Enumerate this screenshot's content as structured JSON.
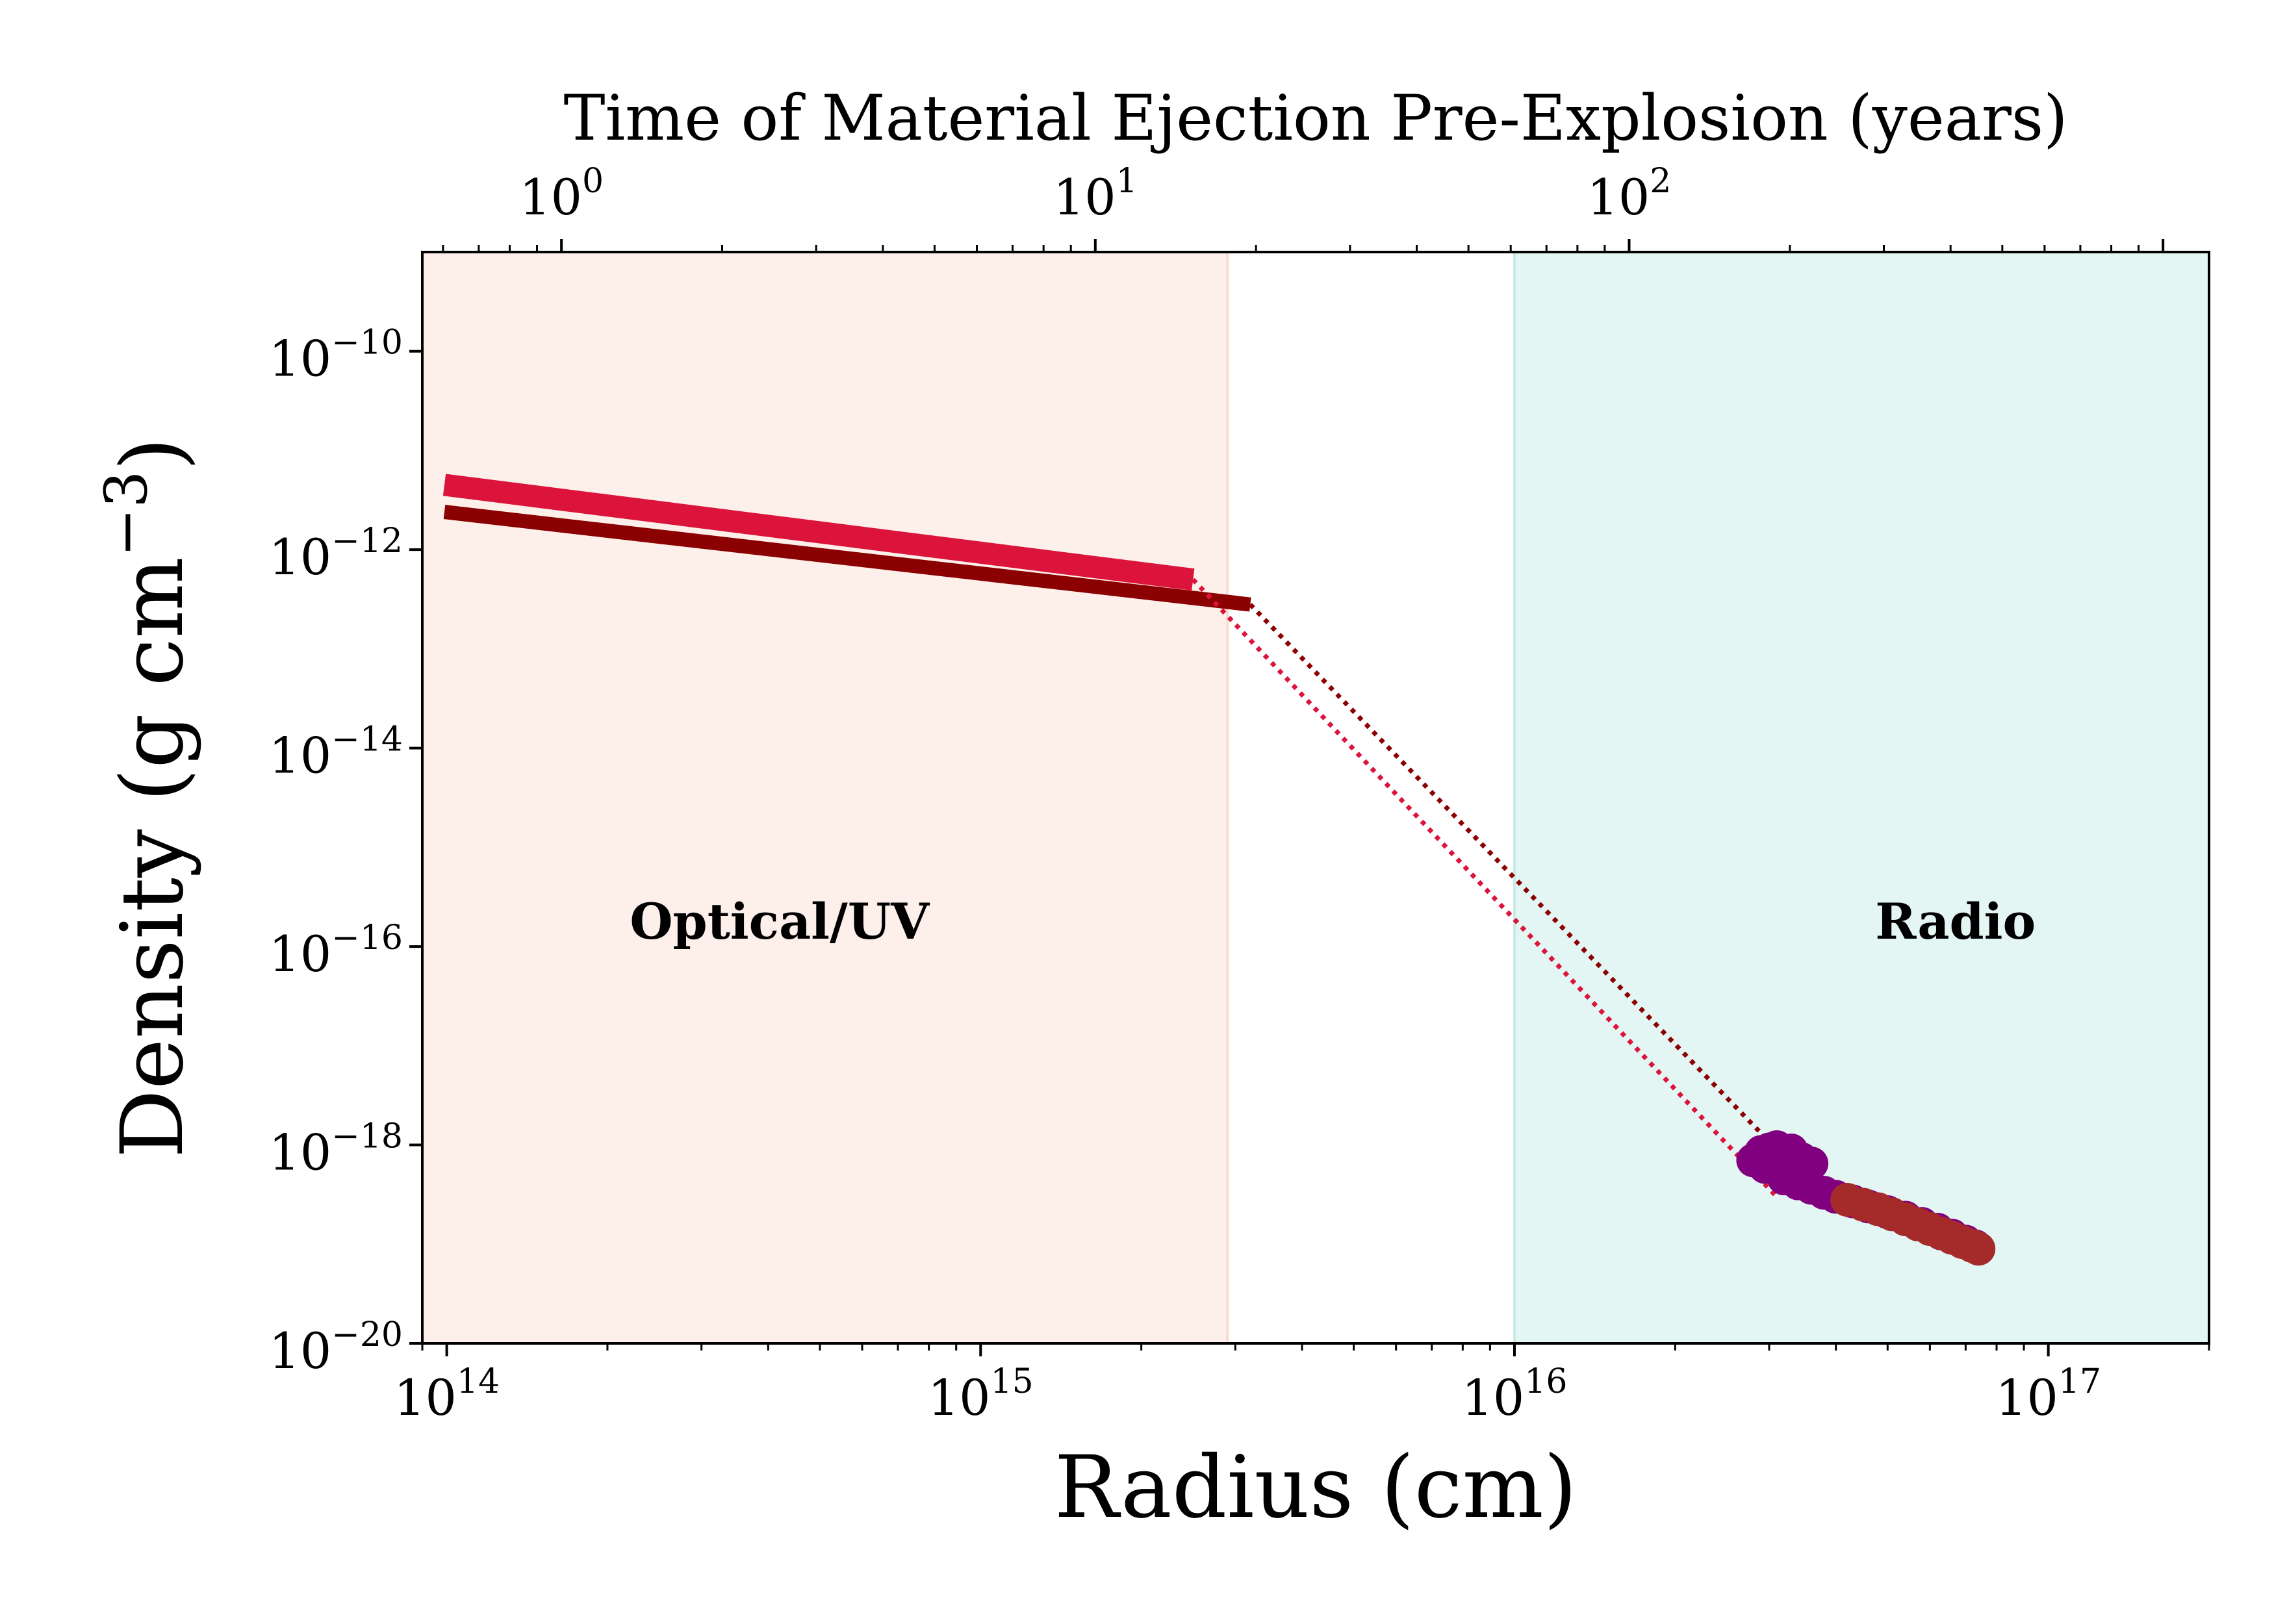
{
  "chart_data": {
    "type": "scatter",
    "xlabel": "Radius (cm)",
    "ylabel": "Density (g cm⁻³)",
    "ylabel_text": "Density (g cm",
    "ylabel_exp": "−3",
    "ylabel_close": ")",
    "top_xlabel": "Time of Material Ejection Pre-Explosion (years)",
    "xscale": "log",
    "yscale": "log",
    "xlim": [
      90000000000000.0,
      2e+17
    ],
    "ylim": [
      1e-20,
      1e-09
    ],
    "x_ticks": [
      {
        "value": 100000000000000.0,
        "base": "10",
        "exp": "14"
      },
      {
        "value": 1000000000000000.0,
        "base": "10",
        "exp": "15"
      },
      {
        "value": 1e+16,
        "base": "10",
        "exp": "16"
      },
      {
        "value": 1e+17,
        "base": "10",
        "exp": "17"
      }
    ],
    "y_ticks": [
      {
        "value": 1e-20,
        "base": "10",
        "exp": "−20"
      },
      {
        "value": 1e-18,
        "base": "10",
        "exp": "−18"
      },
      {
        "value": 1e-16,
        "base": "10",
        "exp": "−16"
      },
      {
        "value": 1e-14,
        "base": "10",
        "exp": "−14"
      },
      {
        "value": 1e-12,
        "base": "10",
        "exp": "−12"
      },
      {
        "value": 1e-10,
        "base": "10",
        "exp": "−10"
      }
    ],
    "top_ticks": [
      {
        "years": 1,
        "base": "10",
        "exp": "0"
      },
      {
        "years": 10,
        "base": "10",
        "exp": "1"
      },
      {
        "years": 100,
        "base": "10",
        "exp": "2"
      }
    ],
    "top_axis_cm_per_year": 164000000000000.0,
    "grid": false,
    "regions": [
      {
        "label": "Optical/UV",
        "x_range": [
          90000000000000.0,
          2900000000000000.0
        ],
        "color": "#fdf0eb",
        "edge": "#f8ddd3",
        "label_x": 420000000000000.0,
        "label_y": 1.2e-16
      },
      {
        "label": "Radio",
        "x_range": [
          1e+16,
          2e+17
        ],
        "color": "#e3f6f3",
        "edge": "#c8ebe6",
        "label_x": 6.7e+16,
        "label_y": 1.2e-16
      }
    ],
    "lines": [
      {
        "color": "#dc143c",
        "width": 34,
        "style": "solid",
        "points": [
          [
            99000000000000.0,
            4.5e-12
          ],
          [
            2500000000000000.0,
            5e-13
          ]
        ]
      },
      {
        "color": "#8b0000",
        "width": 22,
        "style": "solid",
        "points": [
          [
            99000000000000.0,
            2.4e-12
          ],
          [
            3200000000000000.0,
            2.8e-13
          ]
        ]
      },
      {
        "color": "#dc143c",
        "width": 7,
        "style": "dotted",
        "points": [
          [
            2500000000000000.0,
            5e-13
          ],
          [
            3.1e+16,
            3e-19
          ]
        ]
      },
      {
        "color": "#8b0000",
        "width": 7,
        "style": "dotted",
        "points": [
          [
            3200000000000000.0,
            2.8e-13
          ],
          [
            3.1e+16,
            9e-19
          ]
        ]
      }
    ],
    "series": [
      {
        "color": "#800080",
        "points": [
          [
            2.8e+16,
            7e-19
          ],
          [
            2.9e+16,
            8.5e-19
          ],
          [
            2.95e+16,
            6e-19
          ],
          [
            3e+16,
            9e-19
          ],
          [
            3.05e+16,
            7.5e-19
          ],
          [
            3.1e+16,
            9.5e-19
          ],
          [
            3.15e+16,
            6.5e-19
          ],
          [
            3.2e+16,
            8e-19
          ],
          [
            3.25e+16,
            5.5e-19
          ],
          [
            3.3e+16,
            8.8e-19
          ],
          [
            3.35e+16,
            6.8e-19
          ],
          [
            3.45e+16,
            7.2e-19
          ],
          [
            3.6e+16,
            6.5e-19
          ],
          [
            3.2e+16,
            4.6e-19
          ],
          [
            3.4e+16,
            4.1e-19
          ],
          [
            3.6e+16,
            3.7e-19
          ],
          [
            3.8e+16,
            3.3e-19
          ],
          [
            4e+16,
            3e-19
          ],
          [
            4.3e+16,
            2.7e-19
          ],
          [
            4.6e+16,
            2.4e-19
          ],
          [
            5e+16,
            2.1e-19
          ],
          [
            5.4e+16,
            1.85e-19
          ],
          [
            5.8e+16,
            1.6e-19
          ],
          [
            6.2e+16,
            1.4e-19
          ],
          [
            6.6e+16,
            1.22e-19
          ],
          [
            7e+16,
            1.06e-19
          ],
          [
            7.3e+16,
            9.5e-20
          ]
        ]
      },
      {
        "color": "#a52a2a",
        "points": [
          [
            4.2e+16,
            2.8e-19
          ],
          [
            4.5e+16,
            2.5e-19
          ],
          [
            4.8e+16,
            2.25e-19
          ],
          [
            5.1e+16,
            2e-19
          ],
          [
            5.4e+16,
            1.78e-19
          ],
          [
            5.7e+16,
            1.58e-19
          ],
          [
            6e+16,
            1.42e-19
          ],
          [
            6.3e+16,
            1.28e-19
          ],
          [
            6.6e+16,
            1.16e-19
          ],
          [
            6.9e+16,
            1.05e-19
          ],
          [
            7.2e+16,
            9.6e-20
          ],
          [
            7.4e+16,
            9e-20
          ]
        ]
      }
    ]
  }
}
